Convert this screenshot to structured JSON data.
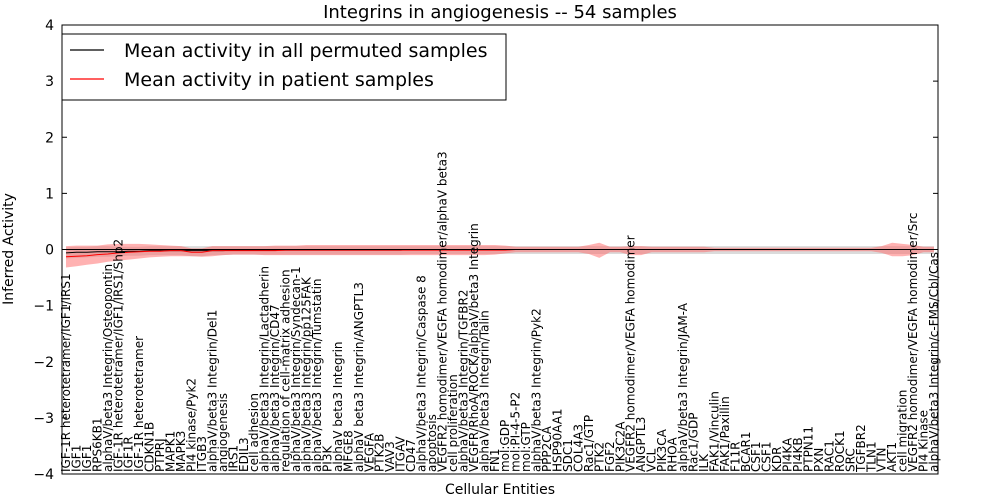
{
  "chart_data": {
    "type": "line",
    "title": "Integrins in angiogenesis -- 54 samples",
    "xlabel": "Cellular Entities",
    "ylabel": "Inferred Activity",
    "ylim": [
      -4,
      4
    ],
    "yticks": [
      -4,
      -3,
      -2,
      -1,
      0,
      1,
      2,
      3,
      4
    ],
    "ytick_labels": [
      "−4",
      "−3",
      "−2",
      "−1",
      "0",
      "1",
      "2",
      "3",
      "4"
    ],
    "legend": {
      "placement": "top-left",
      "entries": [
        {
          "label": "Mean activity in all permuted samples",
          "color": "#000000"
        },
        {
          "label": "Mean activity in patient samples",
          "color": "#ff0000"
        }
      ]
    },
    "categories": [
      "IGF-1R heterotetramer/IGF1/IRS1",
      "IGF1",
      "IGF1",
      "RPS6KB1",
      "alphaV/beta3 Integrin/Osteopontin",
      "IGF-1R heterotetramer/IGF1/IRS1/Shp2",
      "IGF1R",
      "IGF-1R heterotetramer",
      "CDKN1B",
      "PTPRJ",
      "MAPK1",
      "MAPK3",
      "PI4 kinase/Pyk2",
      "ITGB3",
      "alphaV/beta3 Integrin/Del1",
      "angiogenesis",
      "IRS1",
      "EDIL3",
      "cell adhesion",
      "alphaV/beta3 Integrin/Lactadherin",
      "alphaV/beta3 Integrin/CD47",
      "regulation of cell-matrix adhesion",
      "alphaV/beta3 Integrin/Syndecan-1",
      "alphaV/beta3 Integrin/pp125FAK",
      "alphaV/beta3 Integrin/Tumstatin",
      "PI3K",
      "alphaV beta3 Integrin",
      "MFGE8",
      "alphaV beta3 Integrin/ANGPTL3",
      "VEGFA",
      "PTK2B",
      "VAV3",
      "ITGAV",
      "CD47",
      "alphaV/beta3 Integrin/Caspase 8",
      "apoptosis",
      "VEGFR2 homodimer/VEGFA homodimer/alphaV beta3",
      "cell proliferation",
      "alphaV/beta3 Integrin/TGFBR2",
      "VEGFR/RhoA/ROCK/alphaV/beta3 Integrin",
      "alphaV/beta3 Integrin/Talin",
      "FN1",
      "mol:GDP",
      "mol:PI-4-5-P2",
      "mol:GTP",
      "alphaV/beta3 Integrin/Pyk2",
      "PPP2CA",
      "HSP90AA1",
      "SDC1",
      "COL4A3",
      "Rac1/GTP",
      "PTK2",
      "FGF2",
      "PIK3C2A",
      "VEGFR2 homodimer/VEGFA homodimer",
      "ANGPTL3",
      "VCL",
      "PIK3CA",
      "RHOA",
      "alphaV/beta3 Integrin/JAM-A",
      "Rac1/GDP",
      "ILK",
      "FAK1/Vinculin",
      "FAK1/Paxillin",
      "F11R",
      "BCAR1",
      "CSF1",
      "CSF1",
      "KDR",
      "PI4KA",
      "PI4KB",
      "PTPN11",
      "PXN",
      "RAC1",
      "ROCK1",
      "SRC",
      "TGFBR2",
      "TLN1",
      "VTN",
      "AKT1",
      "cell migration",
      "VEGFR2 homodimer/VEGFA homodimer/Src",
      "PI4 Kinase",
      "alphaV/beta3 Integrin/c-FMS/Cbl/Cas"
    ],
    "series": [
      {
        "name": "Mean activity in all permuted samples",
        "color": "#000000",
        "band_color": "#999999",
        "values": [
          -0.06,
          -0.05,
          -0.05,
          -0.04,
          -0.04,
          -0.04,
          -0.03,
          -0.03,
          -0.02,
          -0.02,
          -0.02,
          -0.02,
          -0.02,
          -0.02,
          -0.02,
          -0.02,
          -0.01,
          -0.01,
          -0.01,
          -0.01,
          -0.01,
          -0.01,
          -0.01,
          -0.01,
          -0.01,
          -0.01,
          -0.01,
          -0.01,
          -0.01,
          -0.01,
          -0.01,
          -0.01,
          -0.01,
          0.0,
          0.0,
          0.0,
          0.0,
          0.0,
          0.0,
          0.0,
          0.0,
          0.0,
          0.0,
          0.0,
          0.0,
          0.0,
          0.0,
          0.0,
          0.0,
          0.0,
          0.0,
          0.0,
          0.0,
          0.0,
          0.0,
          0.0,
          0.0,
          0.0,
          0.0,
          0.0,
          0.0,
          0.0,
          0.0,
          0.0,
          0.0,
          0.0,
          0.0,
          0.0,
          0.0,
          0.0,
          0.0,
          0.0,
          0.0,
          0.0,
          0.0,
          0.0,
          0.0,
          0.0,
          0.0,
          0.0,
          0.0,
          0.0,
          0.0,
          0.0
        ],
        "lower": [
          -0.16,
          -0.15,
          -0.14,
          -0.13,
          -0.13,
          -0.12,
          -0.11,
          -0.11,
          -0.1,
          -0.1,
          -0.1,
          -0.1,
          -0.12,
          -0.12,
          -0.1,
          -0.1,
          -0.09,
          -0.09,
          -0.09,
          -0.09,
          -0.09,
          -0.09,
          -0.09,
          -0.09,
          -0.09,
          -0.09,
          -0.09,
          -0.09,
          -0.09,
          -0.09,
          -0.09,
          -0.09,
          -0.09,
          -0.08,
          -0.08,
          -0.08,
          -0.08,
          -0.08,
          -0.08,
          -0.08,
          -0.08,
          -0.08,
          -0.08,
          -0.08,
          -0.08,
          -0.08,
          -0.08,
          -0.08,
          -0.08,
          -0.08,
          -0.08,
          -0.08,
          -0.08,
          -0.08,
          -0.08,
          -0.08,
          -0.08,
          -0.08,
          -0.08,
          -0.08,
          -0.08,
          -0.08,
          -0.08,
          -0.08,
          -0.08,
          -0.08,
          -0.08,
          -0.08,
          -0.08,
          -0.08,
          -0.08,
          -0.08,
          -0.08,
          -0.08,
          -0.08,
          -0.08,
          -0.08,
          -0.08,
          -0.08,
          -0.08,
          -0.08,
          -0.08,
          -0.08,
          -0.08
        ],
        "upper": [
          0.04,
          0.05,
          0.05,
          0.06,
          0.06,
          0.05,
          0.05,
          0.05,
          0.06,
          0.06,
          0.06,
          0.06,
          0.06,
          0.06,
          0.06,
          0.06,
          0.06,
          0.06,
          0.06,
          0.06,
          0.06,
          0.06,
          0.06,
          0.06,
          0.06,
          0.06,
          0.06,
          0.06,
          0.06,
          0.06,
          0.06,
          0.06,
          0.06,
          0.06,
          0.06,
          0.06,
          0.06,
          0.06,
          0.06,
          0.06,
          0.06,
          0.06,
          0.06,
          0.06,
          0.06,
          0.06,
          0.06,
          0.06,
          0.06,
          0.06,
          0.06,
          0.06,
          0.06,
          0.06,
          0.06,
          0.06,
          0.06,
          0.06,
          0.06,
          0.06,
          0.06,
          0.06,
          0.06,
          0.06,
          0.06,
          0.06,
          0.06,
          0.06,
          0.06,
          0.06,
          0.06,
          0.06,
          0.06,
          0.06,
          0.06,
          0.06,
          0.06,
          0.06,
          0.06,
          0.06,
          0.06,
          0.06,
          0.06,
          0.06
        ]
      },
      {
        "name": "Mean activity in patient samples",
        "color": "#ff0000",
        "band_color": "#ff6666",
        "values": [
          -0.13,
          -0.12,
          -0.11,
          -0.09,
          -0.08,
          -0.06,
          -0.05,
          -0.04,
          -0.03,
          -0.03,
          -0.02,
          -0.02,
          -0.05,
          -0.05,
          -0.02,
          -0.02,
          -0.02,
          -0.02,
          -0.02,
          -0.02,
          -0.02,
          -0.01,
          -0.01,
          -0.01,
          -0.01,
          -0.01,
          -0.01,
          -0.01,
          -0.01,
          -0.01,
          -0.01,
          -0.01,
          -0.01,
          -0.01,
          -0.01,
          -0.01,
          -0.01,
          -0.01,
          -0.01,
          -0.01,
          -0.01,
          -0.01,
          -0.01,
          0.0,
          0.0,
          0.0,
          0.0,
          0.0,
          0.0,
          0.0,
          0.0,
          0.0,
          0.0,
          0.0,
          0.0,
          0.0,
          0.0,
          0.0,
          0.0,
          0.0,
          0.0,
          0.0,
          0.0,
          0.0,
          0.0,
          0.0,
          0.0,
          0.0,
          0.0,
          0.0,
          0.0,
          0.0,
          0.0,
          0.0,
          0.0,
          0.0,
          0.0,
          0.0,
          0.0,
          0.0,
          0.0,
          0.0,
          0.0,
          0.0
        ],
        "lower": [
          -0.32,
          -0.3,
          -0.27,
          -0.25,
          -0.22,
          -0.2,
          -0.18,
          -0.16,
          -0.14,
          -0.13,
          -0.12,
          -0.12,
          -0.12,
          -0.13,
          -0.12,
          -0.1,
          -0.09,
          -0.09,
          -0.09,
          -0.1,
          -0.1,
          -0.1,
          -0.1,
          -0.1,
          -0.1,
          -0.1,
          -0.1,
          -0.1,
          -0.1,
          -0.1,
          -0.1,
          -0.1,
          -0.1,
          -0.1,
          -0.1,
          -0.1,
          -0.1,
          -0.1,
          -0.1,
          -0.1,
          -0.1,
          -0.09,
          -0.07,
          -0.05,
          -0.05,
          -0.05,
          -0.05,
          -0.05,
          -0.05,
          -0.05,
          -0.08,
          -0.15,
          -0.05,
          -0.05,
          -0.1,
          -0.1,
          -0.05,
          -0.05,
          -0.05,
          -0.05,
          -0.05,
          -0.05,
          -0.03,
          -0.03,
          -0.03,
          -0.03,
          -0.03,
          -0.03,
          -0.03,
          -0.03,
          -0.03,
          -0.03,
          -0.03,
          -0.03,
          -0.03,
          -0.03,
          -0.03,
          -0.03,
          -0.06,
          -0.12,
          -0.12,
          -0.1,
          -0.05,
          -0.05
        ],
        "upper": [
          0.06,
          0.07,
          0.07,
          0.07,
          0.09,
          0.1,
          0.1,
          0.1,
          0.09,
          0.08,
          0.07,
          0.06,
          0.02,
          0.02,
          0.06,
          0.06,
          0.06,
          0.06,
          0.06,
          0.06,
          0.07,
          0.07,
          0.07,
          0.08,
          0.08,
          0.08,
          0.08,
          0.08,
          0.08,
          0.08,
          0.08,
          0.08,
          0.08,
          0.08,
          0.08,
          0.08,
          0.08,
          0.08,
          0.08,
          0.08,
          0.08,
          0.08,
          0.07,
          0.05,
          0.05,
          0.05,
          0.05,
          0.05,
          0.05,
          0.05,
          0.08,
          0.12,
          0.05,
          0.05,
          0.06,
          0.06,
          0.05,
          0.05,
          0.05,
          0.05,
          0.05,
          0.05,
          0.03,
          0.03,
          0.03,
          0.03,
          0.03,
          0.03,
          0.03,
          0.03,
          0.03,
          0.03,
          0.03,
          0.03,
          0.03,
          0.03,
          0.03,
          0.03,
          0.06,
          0.12,
          0.1,
          0.08,
          0.05,
          0.05
        ]
      }
    ]
  }
}
